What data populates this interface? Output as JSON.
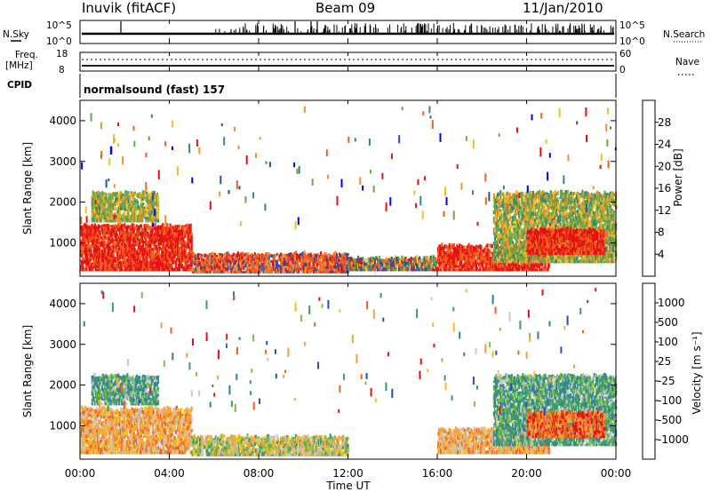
{
  "header": {
    "station": "Inuvik (fitACF)",
    "beam": "Beam 09",
    "date": "11/Jan/2010"
  },
  "strip_panels": {
    "nsky": {
      "label": "N.Sky",
      "ticks_left": [
        "10^5",
        "10^0"
      ],
      "ticks_right": [
        "10^5",
        "10^0"
      ],
      "right_label": "N.Search"
    },
    "freq": {
      "label_line1": "Freq.",
      "label_line2": "[MHz]",
      "ticks_left": [
        "18",
        "8"
      ],
      "ticks_right": [
        "60",
        "0"
      ],
      "right_label": "Nave"
    },
    "cpid": {
      "label": "CPID",
      "program": "normalsound (fast) 157"
    }
  },
  "chart_data": [
    {
      "type": "heatmap",
      "panel": "power",
      "ylabel": "Slant Range [km]",
      "ylim": [
        180,
        4500
      ],
      "yticks": [
        "1000",
        "2000",
        "3000",
        "4000"
      ],
      "xlim": [
        "00:00",
        "24:00"
      ],
      "colorbar": {
        "label": "Power [dB]",
        "ticks": [
          "4",
          "8",
          "12",
          "16",
          "20",
          "24",
          "28"
        ],
        "colors": [
          "#0000ff",
          "#2a4fa8",
          "#3a8a6a",
          "#6aa84a",
          "#f0c020",
          "#f89030",
          "#f06020",
          "#e81010"
        ]
      },
      "regions": [
        {
          "t0": 0.0,
          "t1": 5.0,
          "r0": 300,
          "r1": 1400,
          "level": "red"
        },
        {
          "t0": 0.5,
          "t1": 3.5,
          "r0": 1500,
          "r1": 2200,
          "level": "green"
        },
        {
          "t0": 5.0,
          "t1": 12.0,
          "r0": 250,
          "r1": 700,
          "level": "red-orange"
        },
        {
          "t0": 12.0,
          "t1": 16.0,
          "r0": 300,
          "r1": 600,
          "level": "mixed"
        },
        {
          "t0": 16.0,
          "t1": 21.0,
          "r0": 300,
          "r1": 900,
          "level": "red"
        },
        {
          "t0": 18.5,
          "t1": 24.0,
          "r0": 500,
          "r1": 2200,
          "level": "green"
        },
        {
          "t0": 20.0,
          "t1": 23.5,
          "r0": 700,
          "r1": 1300,
          "level": "red"
        }
      ]
    },
    {
      "type": "heatmap",
      "panel": "velocity",
      "ylabel": "Slant Range [km]",
      "ylim": [
        180,
        4500
      ],
      "yticks": [
        "1000",
        "2000",
        "3000",
        "4000"
      ],
      "xlim": [
        "00:00",
        "24:00"
      ],
      "colorbar": {
        "label": "Velocity [m s⁻¹]",
        "ticks": [
          "1000",
          "500",
          "100",
          "25",
          "-25",
          "-100",
          "-500",
          "-1000"
        ],
        "colors": [
          "#2a4fb8",
          "#2f7f9f",
          "#3a9a70",
          "#7cc040",
          "#c8c8c8",
          "#f0c020",
          "#f8a040",
          "#f06020",
          "#e81010"
        ]
      },
      "regions": [
        {
          "t0": 0.0,
          "t1": 5.0,
          "r0": 300,
          "r1": 1400,
          "level": "orange"
        },
        {
          "t0": 0.5,
          "t1": 3.5,
          "r0": 1500,
          "r1": 2200,
          "level": "green"
        },
        {
          "t0": 5.0,
          "t1": 12.0,
          "r0": 250,
          "r1": 700,
          "level": "mixed"
        },
        {
          "t0": 16.0,
          "t1": 21.0,
          "r0": 300,
          "r1": 900,
          "level": "orange"
        },
        {
          "t0": 18.5,
          "t1": 24.0,
          "r0": 500,
          "r1": 2200,
          "level": "green"
        },
        {
          "t0": 20.0,
          "t1": 23.5,
          "r0": 700,
          "r1": 1300,
          "level": "red"
        }
      ]
    }
  ],
  "xaxis": {
    "ticks": [
      "00:00",
      "04:00",
      "08:00",
      "12:00",
      "16:00",
      "20:00",
      "00:00"
    ],
    "label": "Time UT"
  }
}
